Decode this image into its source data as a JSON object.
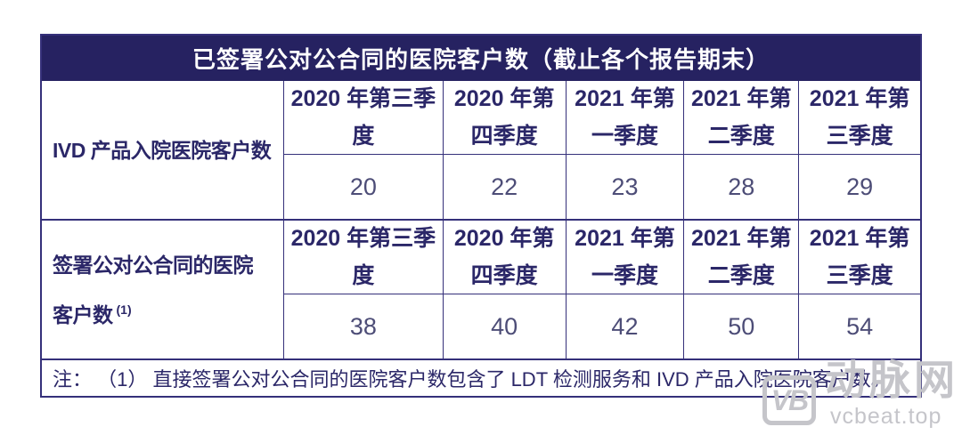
{
  "table": {
    "title": "已签署公对公合同的医院客户数（截止各个报告期末）",
    "sections": [
      {
        "label_line1": "IVD 产品入院医院客户数",
        "label_line2": "",
        "label_sup": "",
        "columns": [
          {
            "header_line1": "2020 年第三季",
            "header_line2": "度",
            "value": "20"
          },
          {
            "header_line1": "2020 年第",
            "header_line2": "四季度",
            "value": "22"
          },
          {
            "header_line1": "2021 年第",
            "header_line2": "一季度",
            "value": "23"
          },
          {
            "header_line1": "2021 年第",
            "header_line2": "二季度",
            "value": "28"
          },
          {
            "header_line1": "2021 年第",
            "header_line2": "三季度",
            "value": "29"
          }
        ]
      },
      {
        "label_line1": "签署公对公合同的医院",
        "label_line2": "客户数",
        "label_sup": "(1)",
        "columns": [
          {
            "header_line1": "2020 年第三季",
            "header_line2": "度",
            "value": "38"
          },
          {
            "header_line1": "2020 年第",
            "header_line2": "四季度",
            "value": "40"
          },
          {
            "header_line1": "2021 年第",
            "header_line2": "一季度",
            "value": "42"
          },
          {
            "header_line1": "2021 年第",
            "header_line2": "二季度",
            "value": "50"
          },
          {
            "header_line1": "2021 年第",
            "header_line2": "三季度",
            "value": "54"
          }
        ]
      }
    ],
    "note": "注： （1） 直接签署公对公合同的医院客户数包含了 LDT 检测服务和 IVD 产品入院医院客户数。"
  },
  "watermark": {
    "logo_text": "VB",
    "brand": "动脉网",
    "url": "vcbeat.top"
  },
  "colors": {
    "header_bg": "#262261",
    "border": "#35307a",
    "text_navy": "#2b2768",
    "value_text": "#4d4d77",
    "watermark_gray": "#c5c5ca"
  },
  "chart_data": {
    "type": "table",
    "title": "已签署公对公合同的医院客户数（截止各个报告期末）",
    "categories": [
      "2020年第三季度",
      "2020年第四季度",
      "2021年第一季度",
      "2021年第二季度",
      "2021年第三季度"
    ],
    "series": [
      {
        "name": "IVD 产品入院医院客户数",
        "values": [
          20,
          22,
          23,
          28,
          29
        ]
      },
      {
        "name": "签署公对公合同的医院客户数 (1)",
        "values": [
          38,
          40,
          42,
          50,
          54
        ]
      }
    ],
    "note": "注：（1）直接签署公对公合同的医院客户数包含了 LDT 检测服务和 IVD 产品入院医院客户数。"
  }
}
